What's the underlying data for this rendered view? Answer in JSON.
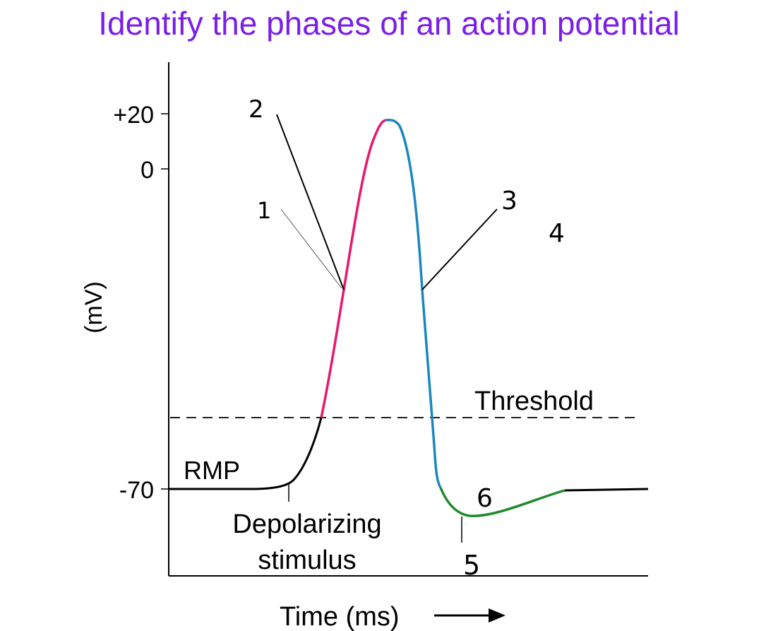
{
  "title": "Identify the phases of an action potential",
  "y_axis": {
    "label": "(mV)",
    "ticks": [
      "+20",
      "0",
      "-70"
    ]
  },
  "x_axis": {
    "label": "Time (ms)"
  },
  "annotations": {
    "threshold": "Threshold",
    "rmp": "RMP",
    "stimulus_line1": "Depolarizing",
    "stimulus_line2": "stimulus"
  },
  "phase_labels": [
    "1",
    "2",
    "3",
    "4",
    "5",
    "6"
  ],
  "colors": {
    "title": "#7a1ee8",
    "depolarization": "#e8176e",
    "repolarization": "#1a87bf",
    "hyperpolarization": "#1e8a2c",
    "baseline": "#000000"
  }
}
